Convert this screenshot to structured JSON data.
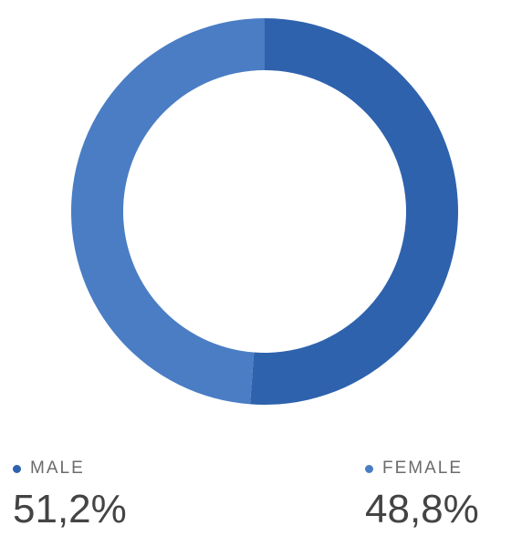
{
  "chart_data": {
    "type": "pie",
    "donut": true,
    "categories": [
      "MALE",
      "FEMALE"
    ],
    "values": [
      51.2,
      48.8
    ],
    "value_labels": [
      "51,2%",
      "48,8%"
    ],
    "colors": [
      "#2e62ad",
      "#4a7dc4"
    ],
    "legend": "bottom"
  }
}
